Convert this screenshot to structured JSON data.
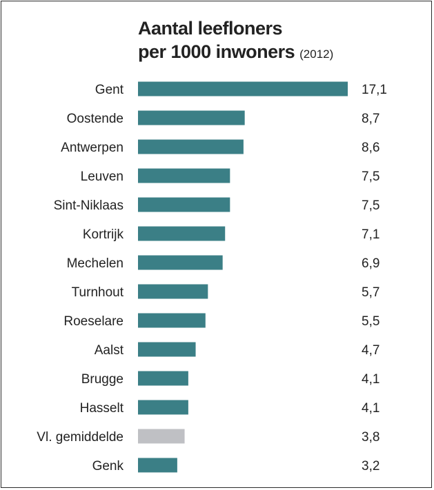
{
  "chart_data": {
    "type": "bar",
    "orientation": "horizontal",
    "title_line1": "Aantal leefloners",
    "title_line2": "per 1000 inwoners",
    "subtitle": "(2012)",
    "categories": [
      "Gent",
      "Oostende",
      "Antwerpen",
      "Leuven",
      "Sint-Niklaas",
      "Kortrijk",
      "Mechelen",
      "Turnhout",
      "Roeselare",
      "Aalst",
      "Brugge",
      "Hasselt",
      "Vl. gemiddelde",
      "Genk"
    ],
    "values": [
      17.1,
      8.7,
      8.6,
      7.5,
      7.5,
      7.1,
      6.9,
      5.7,
      5.5,
      4.7,
      4.1,
      4.1,
      3.8,
      3.2
    ],
    "value_labels": [
      "17,1",
      "8,7",
      "8,6",
      "7,5",
      "7,5",
      "7,1",
      "6,9",
      "5,7",
      "5,5",
      "4,7",
      "4,1",
      "4,1",
      "3,8",
      "3,2"
    ],
    "highlight_category": "Vl. gemiddelde",
    "colors": {
      "bar": "#3b7f86",
      "highlight": "#bfc0c4",
      "text": "#222222"
    },
    "grid": false,
    "legend": "none"
  }
}
